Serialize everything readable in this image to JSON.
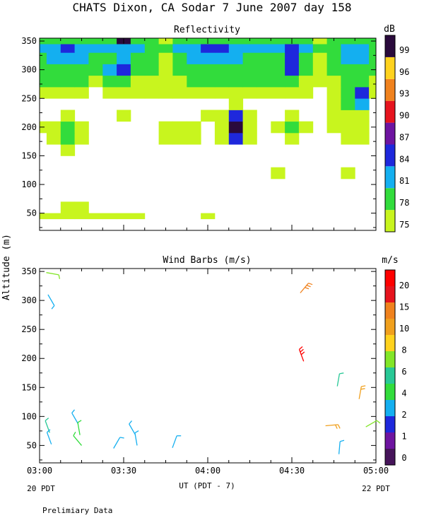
{
  "figure": {
    "title": "CHATS Dixon, CA  Sodar   7 June 2007  day 158",
    "ylabel": "Altitude (m)",
    "xlabel": "UT  (PDT - 7)",
    "left_footnote": "20 PDT",
    "right_footnote": "22 PDT",
    "note": "Prelimiary Data"
  },
  "chart_data": [
    {
      "type": "heatmap",
      "title": "Reflectivity",
      "colorbar_label": "dB",
      "x_ticks": [
        "03:00",
        "03:30",
        "04:00",
        "04:30",
        "05:00"
      ],
      "x_range_hours": [
        3.0,
        5.0
      ],
      "y_ticks": [
        50,
        100,
        150,
        200,
        250,
        300,
        350
      ],
      "ylim": [
        20,
        355
      ],
      "levels": [
        75,
        78,
        81,
        84,
        87,
        90,
        93,
        96,
        99
      ],
      "level_colors": [
        "#c8f51e",
        "#32dc3c",
        "#14aff0",
        "#1e28dc",
        "#6e14a0",
        "#e6141e",
        "#f0821e",
        "#ffd21e",
        "#2a0a3c"
      ],
      "grid": false,
      "x_hours": [
        3.0,
        3.083,
        3.167,
        3.25,
        3.333,
        3.417,
        3.5,
        3.583,
        3.667,
        3.75,
        3.833,
        3.917,
        4.0,
        4.083,
        4.167,
        4.25,
        4.333,
        4.417,
        4.5,
        4.583,
        4.667,
        4.75,
        4.833,
        4.917,
        5.0
      ],
      "y_altitudes": [
        40,
        60,
        80,
        100,
        120,
        140,
        160,
        180,
        200,
        220,
        240,
        260,
        280,
        300,
        320,
        340,
        350
      ],
      "values": [
        [
          75,
          75,
          76,
          76,
          75,
          75,
          75,
          75,
          74,
          73,
          73,
          74,
          75,
          73,
          73,
          73,
          73,
          73,
          73,
          73,
          73,
          73,
          73,
          73,
          74
        ],
        [
          73,
          74,
          76,
          75,
          74,
          73,
          73,
          73,
          73,
          73,
          73,
          73,
          73,
          73,
          73,
          73,
          73,
          73,
          73,
          73,
          73,
          73,
          73,
          73,
          73
        ],
        [
          73,
          73,
          73,
          73,
          73,
          73,
          73,
          73,
          73,
          73,
          73,
          73,
          73,
          73,
          73,
          73,
          73,
          73,
          73,
          73,
          73,
          73,
          73,
          73,
          73
        ],
        [
          73,
          73,
          73,
          73,
          73,
          73,
          73,
          73,
          73,
          73,
          73,
          73,
          73,
          73,
          74,
          73,
          73,
          73,
          73,
          73,
          73,
          73,
          73,
          73,
          73
        ],
        [
          73,
          73,
          73,
          73,
          73,
          73,
          73,
          73,
          73,
          73,
          73,
          73,
          73,
          73,
          73,
          73,
          73,
          75,
          73,
          73,
          73,
          73,
          75,
          73,
          73
        ],
        [
          73,
          73,
          73,
          73,
          73,
          73,
          73,
          73,
          73,
          73,
          73,
          73,
          73,
          73,
          73,
          73,
          73,
          73,
          73,
          73,
          73,
          73,
          73,
          73,
          73
        ],
        [
          73,
          74,
          75,
          74,
          73,
          73,
          73,
          73,
          73,
          73,
          73,
          73,
          73,
          73,
          73,
          73,
          73,
          73,
          73,
          73,
          73,
          73,
          73,
          73,
          73
        ],
        [
          74,
          75,
          79,
          75,
          74,
          73,
          73,
          73,
          73,
          75,
          75,
          75,
          73,
          75,
          85,
          75,
          73,
          74,
          77,
          74,
          73,
          74,
          77,
          75,
          73
        ],
        [
          75,
          76,
          79,
          76,
          74,
          73,
          74,
          73,
          73,
          75,
          75,
          75,
          73,
          77,
          99,
          77,
          73,
          75,
          78,
          75,
          73,
          75,
          76,
          75,
          73
        ],
        [
          74,
          74,
          75,
          74,
          73,
          74,
          75,
          74,
          73,
          73,
          74,
          73,
          75,
          77,
          86,
          77,
          73,
          74,
          75,
          74,
          73,
          76,
          76,
          77,
          73
        ],
        [
          73,
          73,
          73,
          73,
          73,
          73,
          74,
          73,
          73,
          73,
          73,
          73,
          73,
          74,
          75,
          74,
          73,
          73,
          73,
          73,
          73,
          75,
          78,
          81,
          73
        ],
        [
          77,
          76,
          76,
          75,
          74,
          75,
          75,
          75,
          75,
          75,
          76,
          76,
          77,
          75,
          77,
          76,
          76,
          77,
          76,
          75,
          74,
          76,
          80,
          84,
          76
        ],
        [
          78,
          78,
          78,
          78,
          77,
          78,
          79,
          77,
          76,
          76,
          77,
          78,
          78,
          78,
          78,
          78,
          78,
          78,
          78,
          76,
          75,
          76,
          79,
          80,
          77
        ],
        [
          78,
          79,
          80,
          79,
          78,
          81,
          86,
          80,
          78,
          77,
          78,
          78,
          78,
          79,
          79,
          79,
          80,
          80,
          85,
          80,
          76,
          78,
          80,
          80,
          78
        ],
        [
          80,
          82,
          83,
          82,
          79,
          80,
          82,
          80,
          78,
          76,
          78,
          81,
          82,
          82,
          81,
          80,
          79,
          80,
          84,
          80,
          77,
          80,
          81,
          81,
          79
        ],
        [
          81,
          82,
          86,
          83,
          81,
          82,
          83,
          81,
          80,
          79,
          82,
          83,
          84,
          86,
          83,
          82,
          81,
          81,
          85,
          81,
          78,
          80,
          81,
          81,
          80
        ],
        [
          79,
          79,
          80,
          79,
          78,
          80,
          99,
          80,
          78,
          77,
          78,
          79,
          79,
          79,
          79,
          79,
          79,
          79,
          79,
          78,
          77,
          79,
          80,
          80,
          79
        ]
      ]
    },
    {
      "type": "scatter",
      "title": "Wind Barbs (m/s)",
      "colorbar_label": "m/s",
      "x_ticks": [
        "03:00",
        "03:30",
        "04:00",
        "04:30",
        "05:00"
      ],
      "x_range_hours": [
        3.0,
        5.0
      ],
      "y_ticks": [
        50,
        100,
        150,
        200,
        250,
        300,
        350
      ],
      "ylim": [
        20,
        355
      ],
      "speed_ticks": [
        "0",
        "1",
        "2",
        "4",
        "6",
        "8",
        "10",
        "15",
        "20"
      ],
      "speed_colors": [
        "#46145a",
        "#6e14a0",
        "#1e28dc",
        "#14aff0",
        "#32dc3c",
        "#28c896",
        "#82e628",
        "#ffd21e",
        "#f0a01e",
        "#f0821e",
        "#e6141e",
        "#ff0000"
      ],
      "grid": false,
      "barbs": [
        {
          "hour": 3.04,
          "alt": 348,
          "speed": 5,
          "dir": 100
        },
        {
          "hour": 3.05,
          "alt": 310,
          "speed": 2.5,
          "dir": 150
        },
        {
          "hour": 3.06,
          "alt": 72,
          "speed": 4,
          "dir": 340
        },
        {
          "hour": 3.07,
          "alt": 52,
          "speed": 2.5,
          "dir": 340
        },
        {
          "hour": 3.23,
          "alt": 87,
          "speed": 2.5,
          "dir": 330
        },
        {
          "hour": 3.24,
          "alt": 68,
          "speed": 3,
          "dir": 350
        },
        {
          "hour": 3.25,
          "alt": 50,
          "speed": 3,
          "dir": 320
        },
        {
          "hour": 3.44,
          "alt": 45,
          "speed": 2.5,
          "dir": 30
        },
        {
          "hour": 3.57,
          "alt": 68,
          "speed": 2.5,
          "dir": 330
        },
        {
          "hour": 3.58,
          "alt": 50,
          "speed": 2.5,
          "dir": 350
        },
        {
          "hour": 3.79,
          "alt": 46,
          "speed": 2.5,
          "dir": 20
        },
        {
          "hour": 4.55,
          "alt": 313,
          "speed": 12,
          "dir": 40
        },
        {
          "hour": 4.57,
          "alt": 195,
          "speed": 18,
          "dir": 340
        },
        {
          "hour": 4.7,
          "alt": 84,
          "speed": 9,
          "dir": 85
        },
        {
          "hour": 4.77,
          "alt": 152,
          "speed": 4,
          "dir": 10
        },
        {
          "hour": 4.78,
          "alt": 35,
          "speed": 2.5,
          "dir": 5
        },
        {
          "hour": 4.9,
          "alt": 130,
          "speed": 9,
          "dir": 10
        },
        {
          "hour": 4.94,
          "alt": 82,
          "speed": 5,
          "dir": 60
        }
      ]
    }
  ]
}
